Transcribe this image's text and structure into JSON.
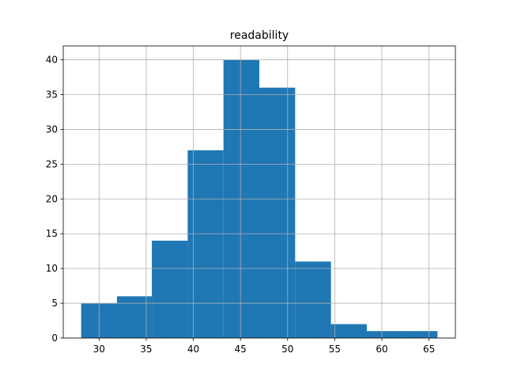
{
  "chart_data": {
    "type": "histogram",
    "title": "readability",
    "bins": [
      28.1,
      31.9,
      35.6,
      39.4,
      43.2,
      47.0,
      50.8,
      54.6,
      58.4,
      62.1,
      65.9
    ],
    "values": [
      5,
      6,
      14,
      27,
      40,
      36,
      11,
      2,
      1,
      1
    ],
    "color": "#1f77b4",
    "xlim": [
      26.2,
      67.8
    ],
    "xticks": [
      30,
      35,
      40,
      45,
      50,
      55,
      60,
      65
    ],
    "ylim": [
      0,
      42
    ],
    "yticks": [
      0,
      5,
      10,
      15,
      20,
      25,
      30,
      35,
      40
    ],
    "grid": true
  }
}
